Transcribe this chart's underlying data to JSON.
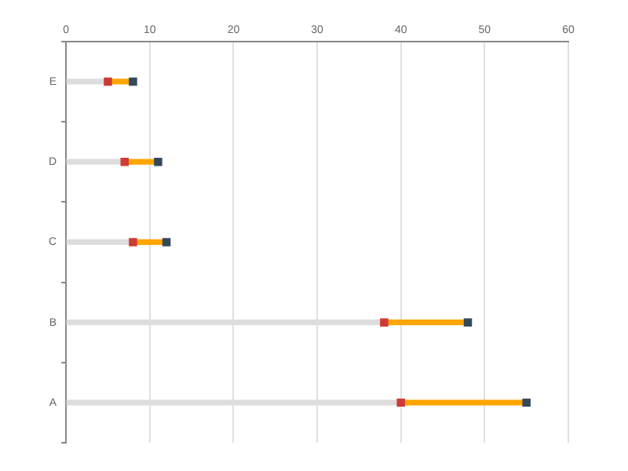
{
  "chart_data": {
    "type": "bar",
    "orientation": "horizontal",
    "categories": [
      "E",
      "D",
      "C",
      "B",
      "A"
    ],
    "stacked": true,
    "xlim": [
      0,
      60
    ],
    "xticks": [
      0,
      10,
      20,
      30,
      40,
      50,
      60
    ],
    "grid": "x",
    "legend": false,
    "series": [
      {
        "color": "#dddddd",
        "values": [
          5,
          7,
          8,
          38,
          40
        ]
      },
      {
        "color": "#ffa500",
        "values": [
          3,
          4,
          4,
          10,
          15
        ]
      },
      {
        "type": "scatter",
        "color": "#d03a36",
        "marker": "square",
        "values": [
          5,
          7,
          8,
          38,
          40
        ]
      },
      {
        "type": "scatter",
        "color": "#34495e",
        "marker": "square",
        "values": [
          8,
          11,
          12,
          48,
          55
        ]
      }
    ]
  }
}
